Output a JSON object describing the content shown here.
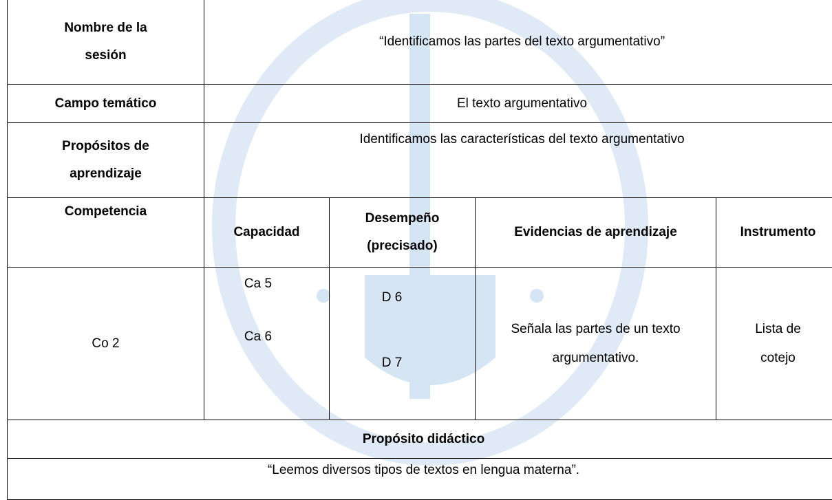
{
  "rows": [
    {
      "label": "Nombre de la sesión",
      "value": "“Identificamos las partes del texto argumentativo”"
    },
    {
      "label": "Campo temático",
      "value": "El texto argumentativo"
    },
    {
      "label": "Propósitos de aprendizaje",
      "value": "Identificamos las características del texto argumentativo"
    }
  ],
  "columns": [
    "Competencia",
    "Capacidad",
    "Desempeño (precisado)",
    "Evidencias de aprendizaje",
    "Instrumento"
  ],
  "entry": {
    "competencia": "Co 2",
    "capacidades": [
      "Ca 5",
      "Ca 6"
    ],
    "desempenos": [
      "D 6",
      "D 7"
    ],
    "evidencia": "Señala las partes de un texto argumentativo.",
    "instrumento": "Lista de cotejo"
  },
  "didactic": {
    "title": "Propósito didáctico",
    "value": "“Leemos diversos tipos de textos en lengua materna”."
  }
}
